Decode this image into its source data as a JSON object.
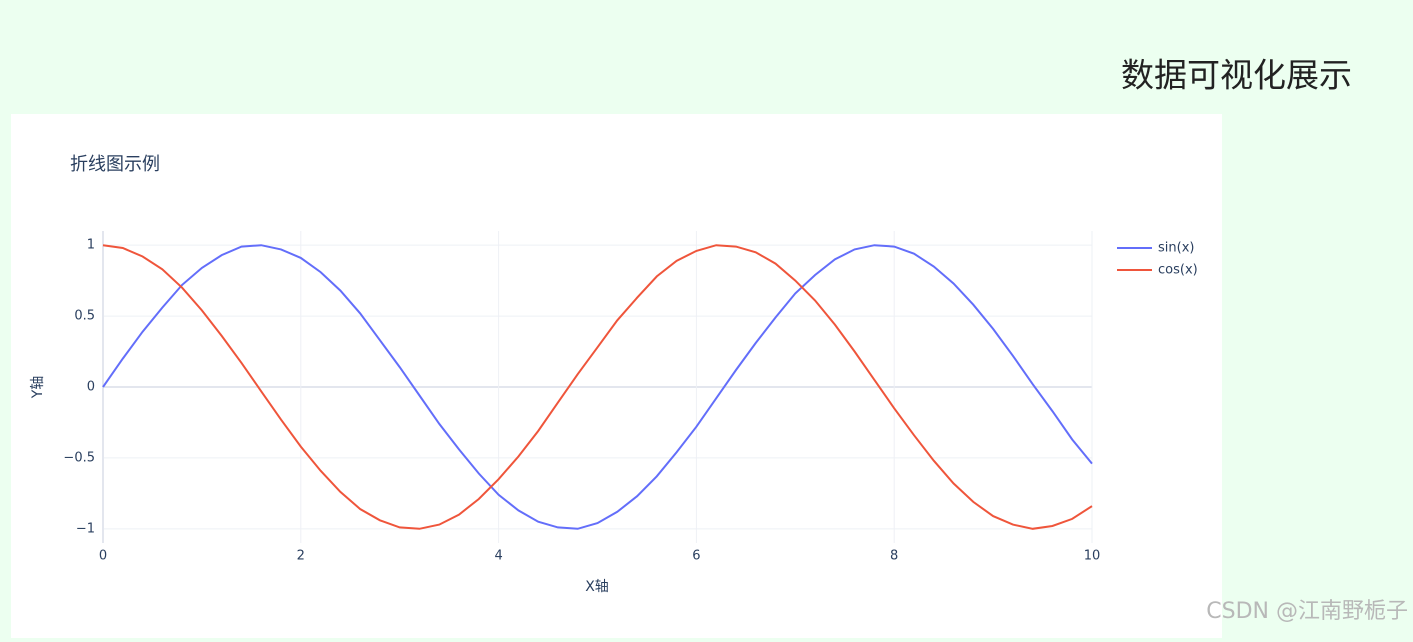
{
  "page": {
    "header": "数据可视化展示",
    "watermark": "CSDN @江南野栀子"
  },
  "chart_data": {
    "type": "line",
    "title": "折线图示例",
    "x_label": "X轴",
    "y_label": "Y轴",
    "x": [
      0,
      0.2,
      0.4,
      0.6,
      0.8,
      1,
      1.2,
      1.4,
      1.6,
      1.8,
      2,
      2.2,
      2.4,
      2.6,
      2.8,
      3,
      3.2,
      3.4,
      3.6,
      3.8,
      4,
      4.2,
      4.4,
      4.6,
      4.8,
      5,
      5.2,
      5.4,
      5.6,
      5.8,
      6,
      6.2,
      6.4,
      6.6,
      6.8,
      7,
      7.2,
      7.4,
      7.6,
      7.8,
      8,
      8.2,
      8.4,
      8.6,
      8.8,
      9,
      9.2,
      9.4,
      9.6,
      9.8,
      10
    ],
    "series": [
      {
        "name": "sin(x)",
        "color": "#636efa",
        "values": [
          0,
          0.2,
          0.39,
          0.56,
          0.72,
          0.84,
          0.93,
          0.99,
          1,
          0.97,
          0.91,
          0.81,
          0.68,
          0.52,
          0.33,
          0.14,
          -0.06,
          -0.26,
          -0.44,
          -0.61,
          -0.76,
          -0.87,
          -0.95,
          -0.99,
          -1,
          -0.96,
          -0.88,
          -0.77,
          -0.63,
          -0.46,
          -0.28,
          -0.08,
          0.12,
          0.31,
          0.49,
          0.66,
          0.79,
          0.9,
          0.97,
          1,
          0.99,
          0.94,
          0.85,
          0.73,
          0.58,
          0.41,
          0.22,
          0.02,
          -0.17,
          -0.37,
          -0.54
        ]
      },
      {
        "name": "cos(x)",
        "color": "#EF553B",
        "values": [
          1,
          0.98,
          0.92,
          0.83,
          0.7,
          0.54,
          0.36,
          0.17,
          -0.03,
          -0.23,
          -0.42,
          -0.59,
          -0.74,
          -0.86,
          -0.94,
          -0.99,
          -1,
          -0.97,
          -0.9,
          -0.79,
          -0.65,
          -0.49,
          -0.31,
          -0.11,
          0.09,
          0.28,
          0.47,
          0.63,
          0.78,
          0.89,
          0.96,
          1,
          0.99,
          0.95,
          0.87,
          0.75,
          0.61,
          0.44,
          0.25,
          0.05,
          -0.15,
          -0.34,
          -0.52,
          -0.68,
          -0.81,
          -0.91,
          -0.97,
          -1,
          -0.98,
          -0.93,
          -0.84
        ]
      }
    ],
    "xlim": [
      0,
      10
    ],
    "ylim": [
      -1.1,
      1.1
    ],
    "xticks": [
      0,
      2,
      4,
      6,
      8,
      10
    ],
    "yticks": [
      {
        "value": -1,
        "label": "−1"
      },
      {
        "value": -0.5,
        "label": "−0.5"
      },
      0,
      0.5,
      1
    ],
    "grid": true,
    "legend": "right"
  }
}
